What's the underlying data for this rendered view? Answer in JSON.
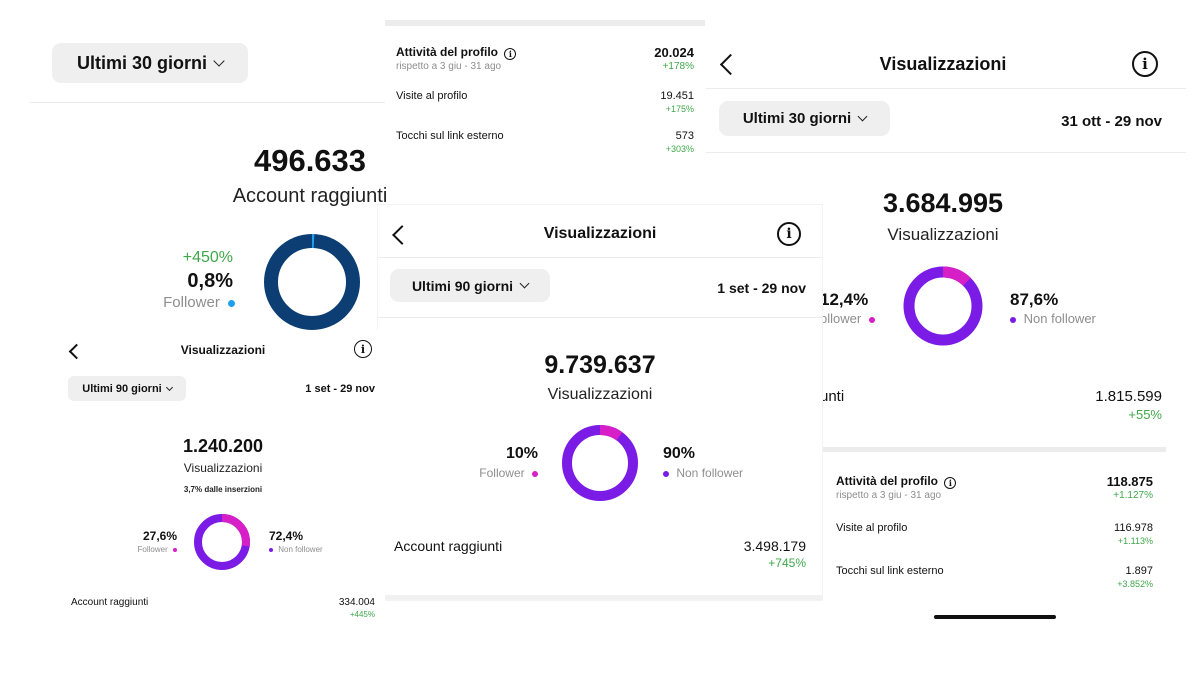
{
  "colors": {
    "pink": "#d61fc7",
    "purple": "#7a1ce6",
    "navy": "#0c3e73",
    "blue": "#1fa0ef",
    "green": "#3fa74a"
  },
  "p1": {
    "range_label": "Ultimi 30 giorni",
    "value": "496.633",
    "label": "Account raggiunti",
    "change": "+450%",
    "percent": "0,8%",
    "segment_label": "Follower",
    "donut": {
      "follower_fraction": 0.008
    }
  },
  "p2": {
    "rows": [
      {
        "label": "Attività del profilo",
        "sub": "rispetto a 3 giu - 31 ago",
        "value": "20.024",
        "change": "+178%"
      },
      {
        "label": "Visite al profilo",
        "value": "19.451",
        "change": "+175%"
      },
      {
        "label": "Tocchi sul link esterno",
        "value": "573",
        "change": "+303%"
      }
    ]
  },
  "p3": {
    "title": "Visualizzazioni",
    "range_label": "Ultimi 30 giorni",
    "date_range": "31 ott - 29 nov",
    "value": "3.684.995",
    "label": "Visualizzazioni",
    "follower_pct": "12,4%",
    "follower_label": "ollower",
    "non_follower_pct": "87,6%",
    "non_follower_label": "Non follower",
    "reached_label": "unti",
    "reached_value": "1.815.599",
    "reached_change": "+55%",
    "donut": {
      "follower_fraction": 0.124
    },
    "rows": [
      {
        "label": "Attività del profilo",
        "sub": "rispetto a 3 giu - 31 ago",
        "value": "118.875",
        "change": "+1.127%"
      },
      {
        "label": "Visite al profilo",
        "value": "116.978",
        "change": "+1.113%"
      },
      {
        "label": "Tocchi sul link esterno",
        "value": "1.897",
        "change": "+3.852%"
      }
    ]
  },
  "p4": {
    "title": "Visualizzazioni",
    "range_label": "Ultimi 90 giorni",
    "date_range": "1 set - 29 nov",
    "value": "9.739.637",
    "label": "Visualizzazioni",
    "follower_pct": "10%",
    "follower_label": "Follower",
    "non_follower_pct": "90%",
    "non_follower_label": "Non follower",
    "reached_label": "Account raggiunti",
    "reached_value": "3.498.179",
    "reached_change": "+745%",
    "donut": {
      "follower_fraction": 0.1
    }
  },
  "p5": {
    "title": "Visualizzazioni",
    "range_label": "Ultimi 90 giorni",
    "date_range": "1 set - 29 nov",
    "value": "1.240.200",
    "label": "Visualizzazioni",
    "ads_note": "3,7% dalle inserzioni",
    "follower_pct": "27,6%",
    "follower_label": "Follower",
    "non_follower_pct": "72,4%",
    "non_follower_label": "Non follower",
    "reached_label": "Account raggiunti",
    "reached_value": "334.004",
    "reached_change": "+445%",
    "donut": {
      "follower_fraction": 0.276
    }
  }
}
